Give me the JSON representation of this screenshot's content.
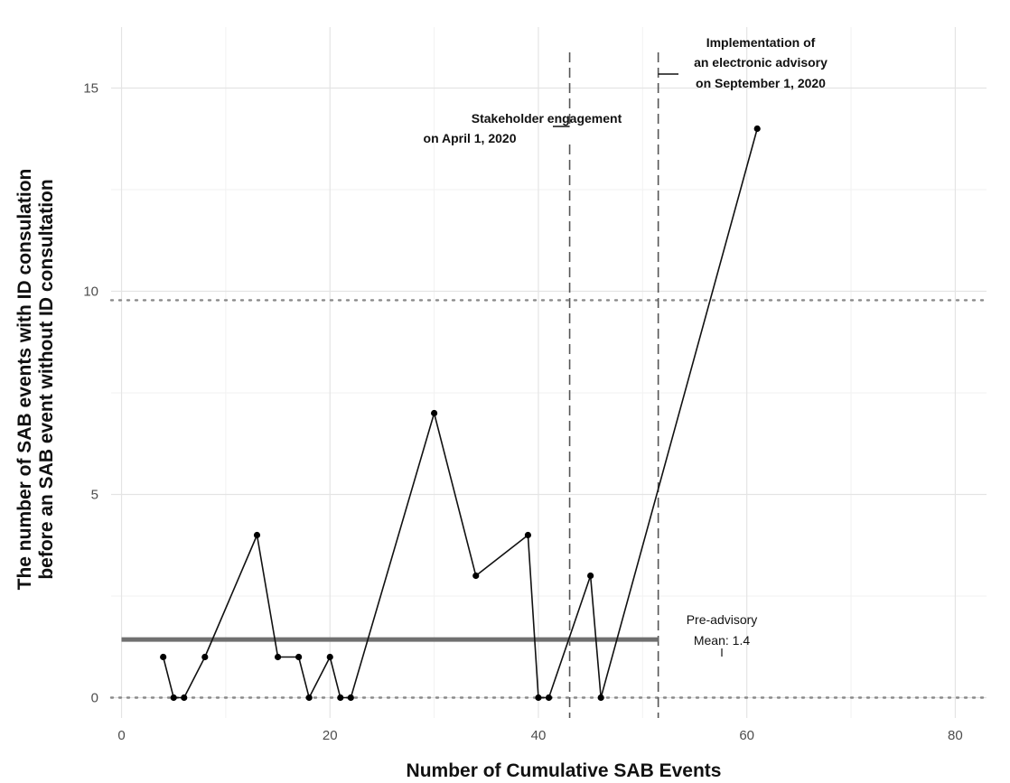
{
  "chart_data": {
    "type": "line",
    "xlabel": "Number of Cumulative SAB Events",
    "ylabel_lines": [
      "The number of SAB events with ID consulation",
      "before an SAB event without ID consultation"
    ],
    "xlim": [
      -1,
      83
    ],
    "ylim": [
      -0.5,
      16.5
    ],
    "x_ticks": [
      0,
      20,
      40,
      60,
      80
    ],
    "y_ticks": [
      0,
      5,
      10,
      15
    ],
    "grid": true,
    "series": [
      {
        "x": [
          4,
          5,
          6,
          8,
          13,
          15,
          17,
          18,
          20,
          21,
          22,
          30,
          34,
          39,
          40,
          41,
          45,
          46,
          61
        ],
        "y": [
          1,
          0,
          0,
          1,
          4,
          1,
          1,
          0,
          1,
          0,
          0,
          7,
          3,
          4,
          0,
          0,
          3,
          0,
          14
        ]
      }
    ],
    "lower_limit": 0,
    "upper_limit": 9.78,
    "mean_line": {
      "value": 1.43,
      "x_start": 0,
      "x_end": 51.5,
      "label_lines": [
        "Pre-advisory",
        "Mean: 1.4"
      ]
    },
    "vertical_lines": [
      {
        "x": 43,
        "label_lines": [
          "Stakeholder engagement",
          "on April 1, 2020"
        ]
      },
      {
        "x": 51.5,
        "label_lines": [
          "Implementation of",
          "an electronic advisory",
          "on September 1, 2020"
        ]
      }
    ]
  }
}
